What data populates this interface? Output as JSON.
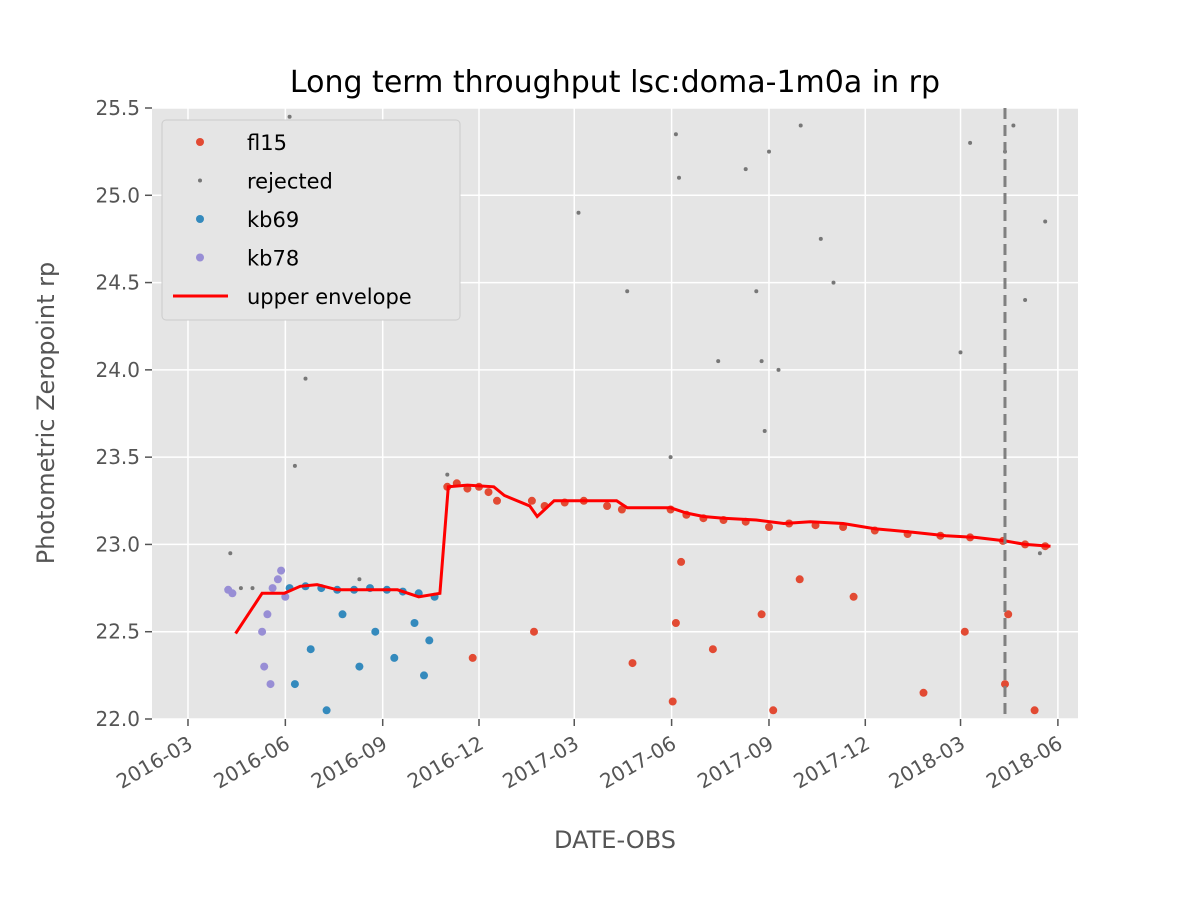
{
  "chart_data": {
    "type": "scatter",
    "title": "Long term throughput  lsc:doma-1m0a in rp",
    "xlabel": "DATE-OBS",
    "ylabel": "Photometric Zeropoint rp",
    "xlim": [
      "2016-01-27",
      "2018-06-20"
    ],
    "ylim": [
      22.0,
      25.5
    ],
    "x_ticks": [
      "2016-03",
      "2016-06",
      "2016-09",
      "2016-12",
      "2017-03",
      "2017-06",
      "2017-09",
      "2017-12",
      "2018-03",
      "2018-06"
    ],
    "y_ticks": [
      "22.0",
      "22.5",
      "23.0",
      "23.5",
      "24.0",
      "24.5",
      "25.0",
      "25.5"
    ],
    "grid": true,
    "legend_position": "top-left",
    "vertical_marker": {
      "date": "2018-04-12",
      "style": "dashed",
      "color": "#808080"
    },
    "series": [
      {
        "name": "fl15",
        "color": "#e24a33",
        "marker": "dot",
        "x": [
          "2016-11-01",
          "2016-11-10",
          "2016-11-20",
          "2016-12-01",
          "2016-12-10",
          "2016-12-18",
          "2017-01-20",
          "2017-02-01",
          "2017-02-20",
          "2017-03-10",
          "2017-04-01",
          "2017-04-15",
          "2017-05-31",
          "2017-06-15",
          "2017-07-01",
          "2017-07-20",
          "2017-08-10",
          "2017-09-01",
          "2017-09-20",
          "2017-10-15",
          "2017-11-10",
          "2017-12-10",
          "2018-01-10",
          "2018-02-10",
          "2018-03-10",
          "2018-04-10",
          "2018-05-01",
          "2018-05-20",
          "2016-11-25",
          "2017-01-22",
          "2017-04-25",
          "2017-06-02",
          "2017-06-05",
          "2017-06-10",
          "2017-07-10",
          "2017-08-25",
          "2017-09-05",
          "2017-09-30",
          "2017-11-20",
          "2018-01-25",
          "2018-03-05",
          "2018-04-12",
          "2018-04-15",
          "2018-05-10"
        ],
        "y": [
          23.33,
          23.35,
          23.32,
          23.33,
          23.3,
          23.25,
          23.25,
          23.22,
          23.24,
          23.25,
          23.22,
          23.2,
          23.2,
          23.17,
          23.15,
          23.14,
          23.13,
          23.1,
          23.12,
          23.11,
          23.1,
          23.08,
          23.06,
          23.05,
          23.04,
          23.02,
          23.0,
          22.99,
          22.35,
          22.5,
          22.32,
          22.1,
          22.55,
          22.9,
          22.4,
          22.6,
          22.05,
          22.8,
          22.7,
          22.15,
          22.5,
          22.2,
          22.6,
          22.05
        ]
      },
      {
        "name": "rejected",
        "color": "#777777",
        "marker": "small-dot",
        "x": [
          "2016-04-10",
          "2016-04-20",
          "2016-05-01",
          "2016-06-05",
          "2016-06-20",
          "2016-06-10",
          "2016-08-10",
          "2016-09-10",
          "2016-10-20",
          "2016-11-01",
          "2017-03-05",
          "2017-04-20",
          "2017-05-31",
          "2017-06-05",
          "2017-06-08",
          "2017-07-15",
          "2017-08-10",
          "2017-08-20",
          "2017-08-25",
          "2017-08-28",
          "2017-09-01",
          "2017-09-10",
          "2017-10-01",
          "2017-10-20",
          "2017-11-01",
          "2018-03-01",
          "2018-03-10",
          "2018-04-12",
          "2018-04-20",
          "2018-05-01",
          "2018-05-20",
          "2018-05-15"
        ],
        "y": [
          22.95,
          22.75,
          22.75,
          25.45,
          23.95,
          23.45,
          22.8,
          25.05,
          22.7,
          23.4,
          24.9,
          24.45,
          23.5,
          25.35,
          25.1,
          24.05,
          25.15,
          24.45,
          24.05,
          23.65,
          25.25,
          24.0,
          25.4,
          24.75,
          24.5,
          24.1,
          25.3,
          25.25,
          25.4,
          24.4,
          24.85,
          22.95
        ]
      },
      {
        "name": "kb69",
        "color": "#348abd",
        "marker": "dot",
        "x": [
          "2016-06-05",
          "2016-06-20",
          "2016-07-05",
          "2016-07-20",
          "2016-08-05",
          "2016-08-20",
          "2016-09-05",
          "2016-09-20",
          "2016-10-05",
          "2016-10-20",
          "2016-06-10",
          "2016-06-25",
          "2016-07-10",
          "2016-07-25",
          "2016-08-10",
          "2016-08-25",
          "2016-09-12",
          "2016-10-01",
          "2016-10-10",
          "2016-10-15"
        ],
        "y": [
          22.75,
          22.76,
          22.75,
          22.74,
          22.74,
          22.75,
          22.74,
          22.73,
          22.72,
          22.7,
          22.2,
          22.4,
          22.05,
          22.6,
          22.3,
          22.5,
          22.35,
          22.55,
          22.25,
          22.45
        ]
      },
      {
        "name": "kb78",
        "color": "#988ed5",
        "marker": "dot",
        "x": [
          "2016-04-08",
          "2016-04-12",
          "2016-05-10",
          "2016-05-15",
          "2016-05-20",
          "2016-05-25",
          "2016-05-28",
          "2016-06-01",
          "2016-05-12",
          "2016-05-18"
        ],
        "y": [
          22.74,
          22.72,
          22.5,
          22.6,
          22.75,
          22.8,
          22.85,
          22.7,
          22.3,
          22.2
        ]
      },
      {
        "name": "upper envelope",
        "color": "#ff0000",
        "marker": "line",
        "x": [
          "2016-04-15",
          "2016-05-10",
          "2016-05-31",
          "2016-06-15",
          "2016-07-01",
          "2016-07-20",
          "2016-08-15",
          "2016-09-15",
          "2016-10-05",
          "2016-10-25",
          "2016-11-02",
          "2016-11-20",
          "2016-12-15",
          "2016-12-25",
          "2017-01-18",
          "2017-01-25",
          "2017-02-10",
          "2017-03-15",
          "2017-04-10",
          "2017-04-20",
          "2017-05-31",
          "2017-06-15",
          "2017-07-01",
          "2017-07-20",
          "2017-08-20",
          "2017-09-15",
          "2017-10-10",
          "2017-11-10",
          "2017-12-10",
          "2018-01-15",
          "2018-02-15",
          "2018-03-15",
          "2018-04-12",
          "2018-05-01",
          "2018-05-25"
        ],
        "y": [
          22.49,
          22.72,
          22.72,
          22.76,
          22.77,
          22.74,
          22.74,
          22.74,
          22.7,
          22.72,
          23.33,
          23.34,
          23.33,
          23.28,
          23.22,
          23.16,
          23.25,
          23.25,
          23.25,
          23.21,
          23.21,
          23.18,
          23.16,
          23.15,
          23.14,
          23.12,
          23.13,
          23.12,
          23.09,
          23.07,
          23.05,
          23.04,
          23.02,
          23.0,
          22.99
        ]
      }
    ]
  }
}
